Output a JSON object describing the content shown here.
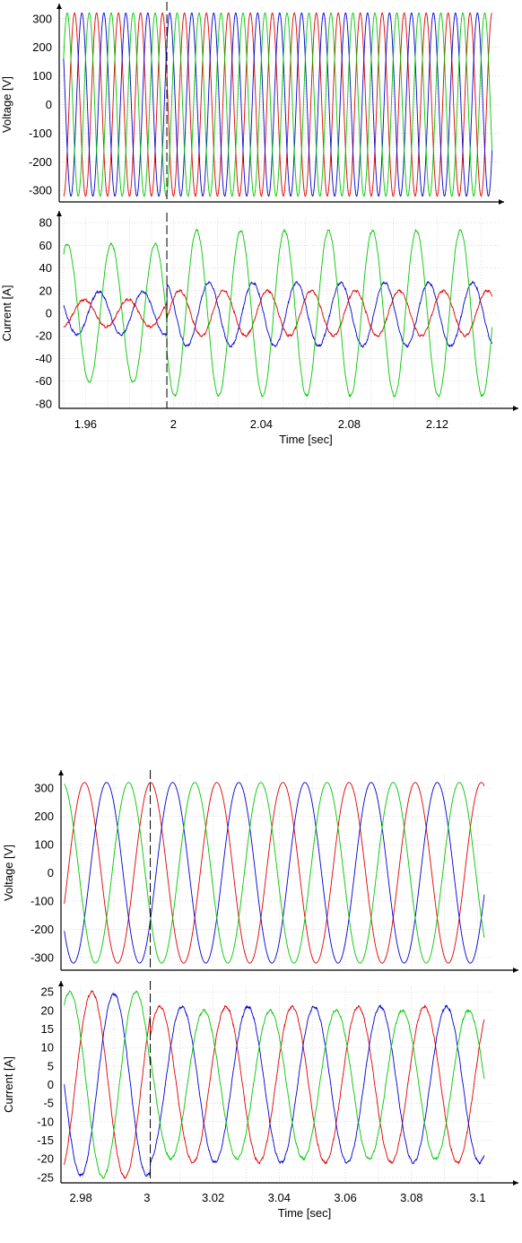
{
  "colors": {
    "phase_a": "#e00000",
    "phase_b": "#0000d0",
    "phase_c": "#00c800"
  },
  "chart_data": [
    {
      "type": "line",
      "xlim": [
        1.948,
        2.148
      ],
      "ylim": [
        -340,
        340
      ],
      "yticks": [
        300,
        200,
        100,
        0,
        -100,
        -200,
        -300
      ],
      "ylabel": "Voltage [V]",
      "xlabel": "",
      "grid": true,
      "event_marker_x": 1.997,
      "series": [
        {
          "color": "#e00000",
          "amplitude": 320,
          "frequency_hz": 100,
          "phase_deg": -90,
          "x_start": 1.95,
          "x_end": 2.145
        },
        {
          "color": "#0000d0",
          "amplitude": 320,
          "frequency_hz": 100,
          "phase_deg": 150,
          "x_start": 1.95,
          "x_end": 2.145
        },
        {
          "color": "#00c800",
          "amplitude": 320,
          "frequency_hz": 100,
          "phase_deg": 30,
          "x_start": 1.95,
          "x_end": 2.145
        }
      ]
    },
    {
      "type": "line",
      "xlim": [
        1.948,
        2.148
      ],
      "ylim": [
        -84,
        84
      ],
      "yticks": [
        80,
        60,
        40,
        20,
        0,
        -20,
        -40,
        -60,
        -80
      ],
      "xticks": [
        1.96,
        2,
        2.04,
        2.08,
        2.12
      ],
      "xtick_labels": [
        "1.96",
        "2",
        "2.04",
        "2.08",
        "2.12"
      ],
      "ylabel": "Current [A]",
      "xlabel": "Time [sec]",
      "grid": true,
      "event_marker_x": 1.997,
      "series": [
        {
          "color": "#0000d0",
          "frequency_hz": 50,
          "amplitude_before": 19,
          "amplitude_after": 28,
          "offset_before": 0,
          "offset_after": -1,
          "phase_before_deg": -20,
          "phase_after_deg": 160,
          "x_start": 1.95,
          "x_end": 2.145
        },
        {
          "color": "#e00000",
          "frequency_hz": 50,
          "amplitude_before": 12,
          "amplitude_after": 20,
          "offset_before": 0,
          "offset_after": 0,
          "phase_before_deg": 100,
          "phase_after_deg": 40,
          "x_start": 1.95,
          "x_end": 2.145
        },
        {
          "color": "#00c800",
          "frequency_hz": 50,
          "amplitude_before": 61,
          "amplitude_after": 73,
          "offset_before": 0,
          "offset_after": 0,
          "phase_before_deg": -120,
          "phase_after_deg": -100,
          "x_start": 1.95,
          "x_end": 2.145
        }
      ]
    },
    {
      "type": "line",
      "xlim": [
        2.974,
        3.105
      ],
      "ylim": [
        -345,
        345
      ],
      "yticks": [
        300,
        200,
        100,
        0,
        -100,
        -200,
        -300
      ],
      "ylabel": "Voltage [V]",
      "xlabel": "",
      "grid": true,
      "event_marker_x": 3.001,
      "series": [
        {
          "color": "#e00000",
          "amplitude": 320,
          "frequency_hz": 50,
          "phase_deg": 70,
          "x_start": 2.975,
          "x_end": 3.102
        },
        {
          "color": "#0000d0",
          "amplitude": 320,
          "frequency_hz": 50,
          "phase_deg": -50,
          "x_start": 2.975,
          "x_end": 3.102
        },
        {
          "color": "#00c800",
          "amplitude": 320,
          "frequency_hz": 50,
          "phase_deg": 190,
          "x_start": 2.975,
          "x_end": 3.102
        }
      ]
    },
    {
      "type": "line",
      "xlim": [
        2.974,
        3.105
      ],
      "ylim": [
        -26.5,
        26.5
      ],
      "yticks": [
        25,
        20,
        15,
        10,
        5,
        0,
        -5,
        -10,
        -15,
        -20,
        -25
      ],
      "xticks": [
        2.98,
        3,
        3.02,
        3.04,
        3.06,
        3.08,
        3.1
      ],
      "xtick_labels": [
        "2.98",
        "3",
        "3.02",
        "3.04",
        "3.06",
        "3.08",
        "3.1"
      ],
      "ylabel": "Current [A]",
      "xlabel": "Time [sec]",
      "grid": true,
      "event_marker_x": 3.001,
      "series": [
        {
          "color": "#e00000",
          "frequency_hz": 50,
          "amplitude_before": 25,
          "amplitude_after": 21,
          "offset_before": 0,
          "offset_after": 0,
          "phase_before_deg": 30,
          "phase_after_deg": 20,
          "x_start": 2.975,
          "x_end": 3.102
        },
        {
          "color": "#0000d0",
          "frequency_hz": 50,
          "amplitude_before": 24.5,
          "amplitude_after": 21,
          "offset_before": 0,
          "offset_after": 0,
          "phase_before_deg": -90,
          "phase_after_deg": -100,
          "x_start": 2.975,
          "x_end": 3.102
        },
        {
          "color": "#00c800",
          "frequency_hz": 50,
          "amplitude_before": 25,
          "amplitude_after": 20,
          "offset_before": 0,
          "offset_after": 0,
          "phase_before_deg": 150,
          "phase_after_deg": 140,
          "x_start": 2.975,
          "x_end": 3.102
        }
      ]
    }
  ]
}
